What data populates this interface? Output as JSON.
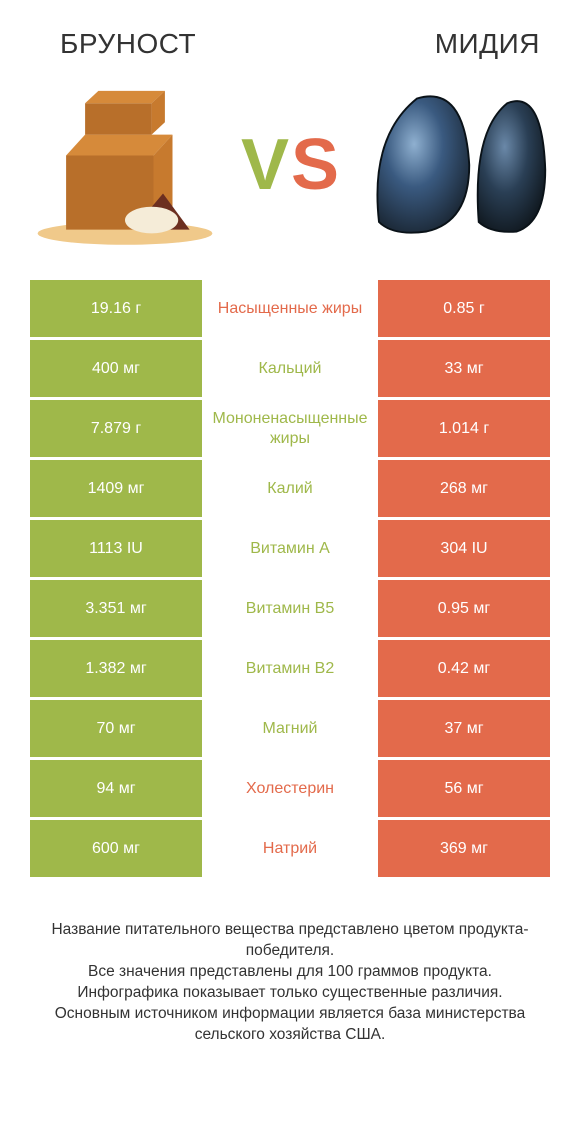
{
  "colors": {
    "green": "#9fb84a",
    "orange": "#e36a4b",
    "text": "#333333",
    "white": "#ffffff",
    "cheese_top": "#d68a3a",
    "cheese_side": "#b86f2a",
    "cheese_dark": "#6c2f20",
    "board": "#f0c98a",
    "mussel_dark": "#1a2633",
    "mussel_blue": "#3a5a80",
    "mussel_hl": "#8fb0d0"
  },
  "left_title": "БРУНОСТ",
  "right_title": "МИДИЯ",
  "vs_v": "V",
  "vs_s": "S",
  "rows": [
    {
      "left": "19.16 г",
      "label": "Насыщенные жиры",
      "right": "0.85 г",
      "label_side": "orange"
    },
    {
      "left": "400 мг",
      "label": "Кальций",
      "right": "33 мг",
      "label_side": "green"
    },
    {
      "left": "7.879 г",
      "label": "Мононенасыщенные жиры",
      "right": "1.014 г",
      "label_side": "green"
    },
    {
      "left": "1409 мг",
      "label": "Калий",
      "right": "268 мг",
      "label_side": "green"
    },
    {
      "left": "1113 IU",
      "label": "Витамин A",
      "right": "304 IU",
      "label_side": "green"
    },
    {
      "left": "3.351 мг",
      "label": "Витамин B5",
      "right": "0.95 мг",
      "label_side": "green"
    },
    {
      "left": "1.382 мг",
      "label": "Витамин B2",
      "right": "0.42 мг",
      "label_side": "green"
    },
    {
      "left": "70 мг",
      "label": "Магний",
      "right": "37 мг",
      "label_side": "green"
    },
    {
      "left": "94 мг",
      "label": "Холестерин",
      "right": "56 мг",
      "label_side": "orange"
    },
    {
      "left": "600 мг",
      "label": "Натрий",
      "right": "369 мг",
      "label_side": "orange"
    }
  ],
  "footer_lines": [
    "Название питательного вещества представлено цветом продукта-победителя.",
    "Все значения представлены для 100 граммов продукта.",
    "Инфографика показывает только существенные различия.",
    "Основным источником информации является база министерства сельского хозяйства США."
  ]
}
